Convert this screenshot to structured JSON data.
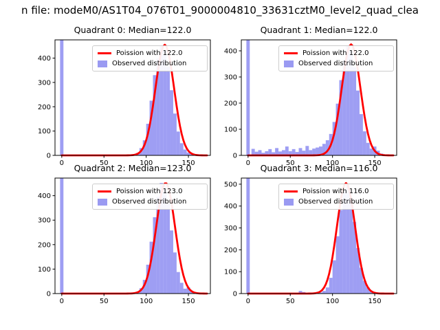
{
  "figure_title": "n file: modeM0/AS1T04_076T01_9000004810_33631cztM0_level2_quad_clea",
  "colors": {
    "histogram": "#7878ee",
    "curve": "#ff0000",
    "axis": "#000000",
    "background": "#ffffff"
  },
  "chart_data": [
    {
      "type": "bar",
      "subtype": "histogram-with-fit-line",
      "title": "Quadrant 0: Median=122.0",
      "median": 122.0,
      "legend": {
        "curve": "Poission with 122.0",
        "hist": "Observed distribution"
      },
      "xlim": [
        -8,
        176
      ],
      "ylim": [
        0,
        475
      ],
      "xticks": [
        0,
        50,
        100,
        150
      ],
      "yticks": [
        0,
        100,
        200,
        300,
        400
      ],
      "bin_width": 4,
      "bins": [
        [
          0,
          3000
        ],
        [
          82,
          2
        ],
        [
          86,
          4
        ],
        [
          90,
          10
        ],
        [
          94,
          30
        ],
        [
          98,
          62
        ],
        [
          102,
          130
        ],
        [
          106,
          225
        ],
        [
          110,
          330
        ],
        [
          114,
          398
        ],
        [
          118,
          452
        ],
        [
          122,
          430
        ],
        [
          126,
          365
        ],
        [
          130,
          268
        ],
        [
          134,
          172
        ],
        [
          138,
          98
        ],
        [
          142,
          50
        ],
        [
          146,
          24
        ],
        [
          150,
          12
        ],
        [
          154,
          5
        ],
        [
          158,
          2
        ]
      ],
      "curve": {
        "mu": 122,
        "sigma": 11.05,
        "amplitude": 455
      }
    },
    {
      "type": "bar",
      "subtype": "histogram-with-fit-line",
      "title": "Quadrant 1: Median=122.0",
      "median": 122.0,
      "legend": {
        "curve": "Poission with 122.0",
        "hist": "Observed distribution"
      },
      "xlim": [
        -8,
        176
      ],
      "ylim": [
        0,
        442
      ],
      "xticks": [
        0,
        50,
        100,
        150
      ],
      "yticks": [
        0,
        100,
        200,
        300,
        400
      ],
      "bin_width": 4,
      "bins": [
        [
          0,
          3000
        ],
        [
          6,
          25
        ],
        [
          10,
          14
        ],
        [
          14,
          20
        ],
        [
          18,
          10
        ],
        [
          22,
          16
        ],
        [
          26,
          24
        ],
        [
          30,
          12
        ],
        [
          34,
          28
        ],
        [
          38,
          15
        ],
        [
          42,
          20
        ],
        [
          46,
          34
        ],
        [
          50,
          16
        ],
        [
          54,
          24
        ],
        [
          58,
          13
        ],
        [
          62,
          28
        ],
        [
          66,
          18
        ],
        [
          70,
          36
        ],
        [
          74,
          20
        ],
        [
          78,
          26
        ],
        [
          82,
          30
        ],
        [
          86,
          34
        ],
        [
          90,
          44
        ],
        [
          94,
          58
        ],
        [
          98,
          82
        ],
        [
          102,
          128
        ],
        [
          106,
          198
        ],
        [
          110,
          288
        ],
        [
          114,
          366
        ],
        [
          118,
          420
        ],
        [
          122,
          398
        ],
        [
          126,
          338
        ],
        [
          130,
          248
        ],
        [
          134,
          158
        ],
        [
          138,
          92
        ],
        [
          142,
          48
        ],
        [
          146,
          26
        ],
        [
          150,
          34
        ],
        [
          154,
          18
        ],
        [
          158,
          7
        ]
      ],
      "curve": {
        "mu": 122,
        "sigma": 11.05,
        "amplitude": 425
      }
    },
    {
      "type": "bar",
      "subtype": "histogram-with-fit-line",
      "title": "Quadrant 2: Median=123.0",
      "median": 123.0,
      "legend": {
        "curve": "Poission with 123.0",
        "hist": "Observed distribution"
      },
      "xlim": [
        -8,
        176
      ],
      "ylim": [
        0,
        472
      ],
      "xticks": [
        0,
        50,
        100,
        150
      ],
      "yticks": [
        0,
        100,
        200,
        300,
        400
      ],
      "bin_width": 4,
      "bins": [
        [
          0,
          3000
        ],
        [
          86,
          4
        ],
        [
          90,
          8
        ],
        [
          94,
          22
        ],
        [
          98,
          56
        ],
        [
          102,
          118
        ],
        [
          106,
          212
        ],
        [
          110,
          312
        ],
        [
          114,
          396
        ],
        [
          118,
          452
        ],
        [
          122,
          438
        ],
        [
          126,
          368
        ],
        [
          130,
          258
        ],
        [
          134,
          168
        ],
        [
          138,
          88
        ],
        [
          142,
          44
        ],
        [
          146,
          20
        ],
        [
          150,
          26
        ],
        [
          154,
          9
        ],
        [
          158,
          3
        ]
      ],
      "curve": {
        "mu": 123,
        "sigma": 11.09,
        "amplitude": 452
      }
    },
    {
      "type": "bar",
      "subtype": "histogram-with-fit-line",
      "title": "Quadrant 3: Median=116.0",
      "median": 116.0,
      "legend": {
        "curve": "Poission with 116.0",
        "hist": "Observed distribution"
      },
      "xlim": [
        -8,
        176
      ],
      "ylim": [
        0,
        528
      ],
      "xticks": [
        0,
        50,
        100,
        150
      ],
      "yticks": [
        0,
        100,
        200,
        300,
        400,
        500
      ],
      "bin_width": 4,
      "bins": [
        [
          0,
          3000
        ],
        [
          62,
          12
        ],
        [
          66,
          7
        ],
        [
          86,
          5
        ],
        [
          90,
          12
        ],
        [
          94,
          28
        ],
        [
          98,
          72
        ],
        [
          102,
          152
        ],
        [
          106,
          262
        ],
        [
          110,
          382
        ],
        [
          114,
          472
        ],
        [
          118,
          498
        ],
        [
          122,
          428
        ],
        [
          126,
          328
        ],
        [
          130,
          208
        ],
        [
          134,
          118
        ],
        [
          138,
          58
        ],
        [
          142,
          28
        ],
        [
          146,
          13
        ],
        [
          150,
          6
        ]
      ],
      "curve": {
        "mu": 116,
        "sigma": 10.77,
        "amplitude": 505
      }
    }
  ]
}
